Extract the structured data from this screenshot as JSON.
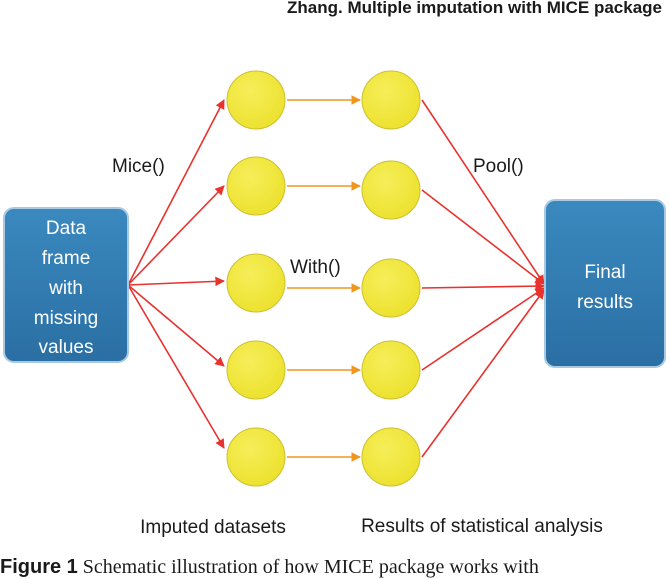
{
  "header": "Zhang. Multiple imputation with MICE package",
  "caption": {
    "label": "Figure 1",
    "text": " Schematic illustration of how MICE package works with"
  },
  "diagram": {
    "source_box": [
      "Data",
      "frame",
      "with",
      "missing",
      "values"
    ],
    "target_box": [
      "Final",
      "results"
    ],
    "steps": {
      "mice": "Mice()",
      "with": "With()",
      "pool": "Pool()"
    },
    "column_labels": {
      "imputed": "Imputed datasets",
      "results": "Results of statistical analysis"
    },
    "colors": {
      "box_fill": "#2f7cb2",
      "box_stroke": "#a9c8e2",
      "node_fill": "#f2e638",
      "node_stroke": "#ccc030",
      "red_arrow": "#e8322e",
      "orange_arrow": "#f0961e"
    }
  }
}
